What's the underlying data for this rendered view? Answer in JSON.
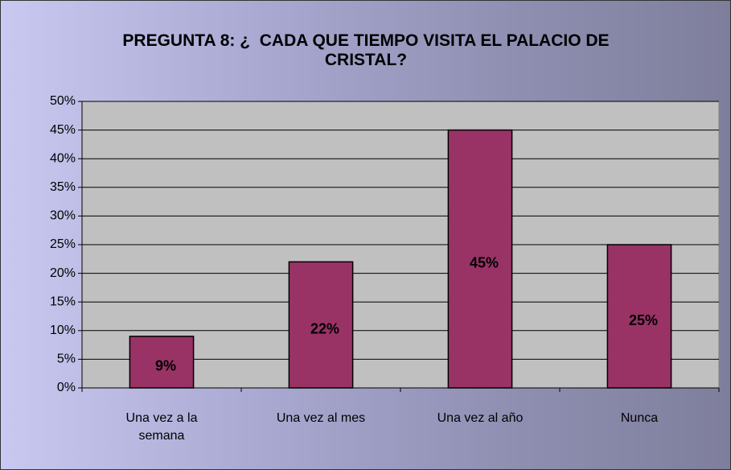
{
  "chart_data": {
    "type": "bar",
    "title": "PREGUNTA 8: ¿  CADA QUE TIEMPO VISITA EL PALACIO DE CRISTAL?",
    "categories": [
      "Una vez a la semana",
      "Una vez al mes",
      "Una vez al año",
      "Nunca"
    ],
    "values": [
      9,
      22,
      45,
      25
    ],
    "value_labels": [
      "9%",
      "22%",
      "45%",
      "25%"
    ],
    "color": "#993366",
    "ylim": [
      0,
      50
    ],
    "yticks": [
      {
        "value": 0,
        "label": "0%"
      },
      {
        "value": 5,
        "label": "5%"
      },
      {
        "value": 10,
        "label": "10%"
      },
      {
        "value": 15,
        "label": "15%"
      },
      {
        "value": 20,
        "label": "20%"
      },
      {
        "value": 25,
        "label": "25%"
      },
      {
        "value": 30,
        "label": "30%"
      },
      {
        "value": 35,
        "label": "35%"
      },
      {
        "value": 40,
        "label": "40%"
      },
      {
        "value": 45,
        "label": "45%"
      },
      {
        "value": 50,
        "label": "50%"
      }
    ],
    "grid": true
  }
}
